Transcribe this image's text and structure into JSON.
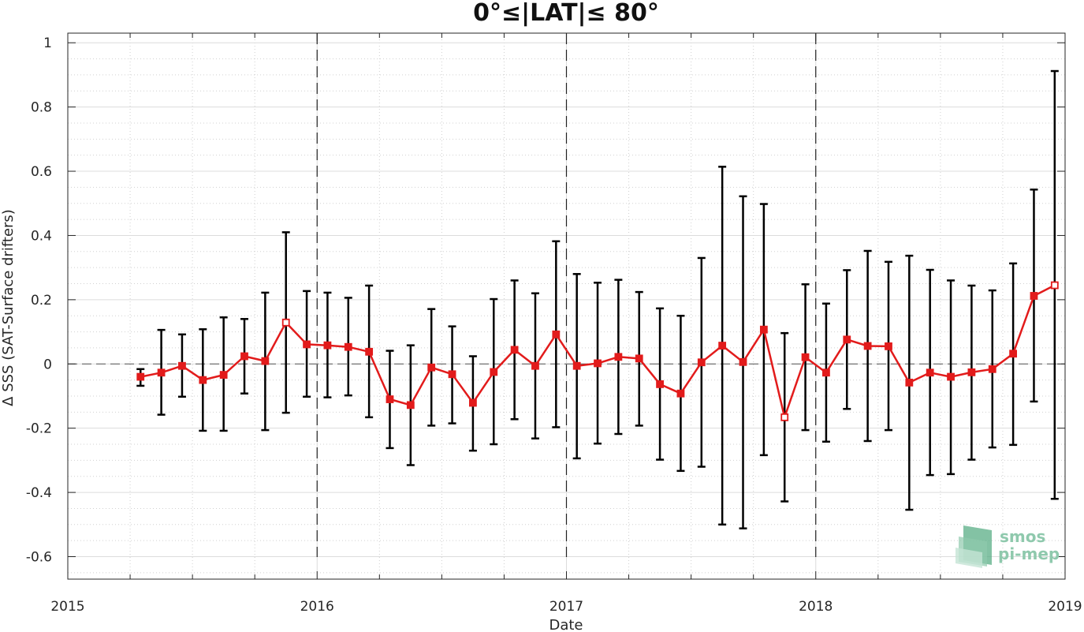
{
  "chart_data": {
    "type": "line",
    "title": "0°≤|LAT|≤ 80°",
    "xlabel": "Date",
    "ylabel": "Δ SSS (SAT-Surface drifters)",
    "xlim": [
      2015,
      2019
    ],
    "ylim": [
      -0.67,
      1.03
    ],
    "x_ticks": [
      "2015",
      "2016",
      "2017",
      "2018",
      "2019"
    ],
    "y_ticks": [
      "1",
      "0.8",
      "0.6",
      "0.4",
      "0.2",
      "0",
      "-0.2",
      "-0.4",
      "-0.6"
    ],
    "grid": true,
    "year_separators": [
      2016,
      2017,
      2018
    ],
    "zero_line": 0,
    "colors": {
      "line": "#e21b1b",
      "errorbar": "#000000",
      "grid": "#d9d9d9"
    },
    "series": [
      {
        "x": [
          "2015-04",
          "2015-05",
          "2015-06",
          "2015-07",
          "2015-08",
          "2015-09",
          "2015-10",
          "2015-11",
          "2015-12",
          "2016-01",
          "2016-02",
          "2016-03",
          "2016-04",
          "2016-05",
          "2016-06",
          "2016-07",
          "2016-08",
          "2016-09",
          "2016-10",
          "2016-11",
          "2016-12",
          "2017-01",
          "2017-02",
          "2017-03",
          "2017-04",
          "2017-05",
          "2017-06",
          "2017-07",
          "2017-08",
          "2017-09",
          "2017-10",
          "2017-11",
          "2017-12",
          "2018-01",
          "2018-02",
          "2018-03",
          "2018-04",
          "2018-05",
          "2018-06",
          "2018-07",
          "2018-08",
          "2018-09",
          "2018-10",
          "2018-11",
          "2018-12"
        ],
        "y": [
          -0.04,
          -0.027,
          -0.006,
          -0.05,
          -0.034,
          0.024,
          0.009,
          0.129,
          0.061,
          0.058,
          0.053,
          0.038,
          -0.11,
          -0.128,
          -0.011,
          -0.032,
          -0.121,
          -0.025,
          0.044,
          -0.006,
          0.092,
          -0.006,
          0.002,
          0.022,
          0.017,
          -0.063,
          -0.092,
          0.005,
          0.057,
          0.006,
          0.107,
          -0.166,
          0.021,
          -0.027,
          0.076,
          0.056,
          0.055,
          -0.058,
          -0.027,
          -0.04,
          -0.026,
          -0.016,
          0.032,
          0.212,
          0.245
        ],
        "err_low": [
          -0.068,
          -0.158,
          -0.102,
          -0.208,
          -0.208,
          -0.092,
          -0.206,
          -0.152,
          -0.102,
          -0.104,
          -0.098,
          -0.166,
          -0.262,
          -0.315,
          -0.192,
          -0.185,
          -0.27,
          -0.25,
          -0.172,
          -0.232,
          -0.197,
          -0.294,
          -0.248,
          -0.218,
          -0.192,
          -0.298,
          -0.333,
          -0.32,
          -0.5,
          -0.512,
          -0.284,
          -0.428,
          -0.206,
          -0.242,
          -0.14,
          -0.24,
          -0.206,
          -0.454,
          -0.346,
          -0.343,
          -0.298,
          -0.26,
          -0.252,
          -0.117,
          -0.42
        ],
        "err_high": [
          -0.016,
          0.106,
          0.092,
          0.108,
          0.145,
          0.14,
          0.222,
          0.41,
          0.227,
          0.222,
          0.206,
          0.244,
          0.041,
          0.058,
          0.171,
          0.117,
          0.024,
          0.202,
          0.26,
          0.22,
          0.382,
          0.28,
          0.253,
          0.262,
          0.224,
          0.173,
          0.15,
          0.33,
          0.614,
          0.522,
          0.498,
          0.096,
          0.248,
          0.188,
          0.292,
          0.352,
          0.318,
          0.337,
          0.293,
          0.26,
          0.244,
          0.229,
          0.313,
          0.543,
          0.912
        ]
      }
    ]
  },
  "logo": {
    "line1": "smos",
    "line2": "pi-mep"
  }
}
